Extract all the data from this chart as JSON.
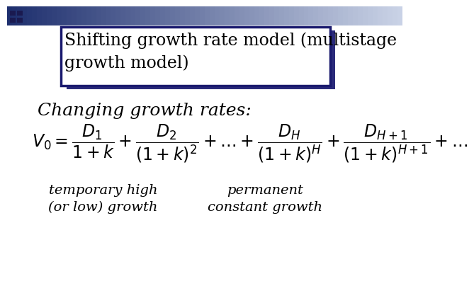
{
  "title_text": "Shifting growth rate model (multistage\ngrowth model)",
  "subtitle_text": "Changing growth rates:",
  "formula": "$V_0 = \\dfrac{D_1}{1+k} + \\dfrac{D_2}{(1+k)^2} + \\ldots + \\dfrac{D_H}{(1+k)^H} + \\dfrac{D_{H+1}}{(1+k)^{H+1}} + \\ldots$",
  "label_left": "temporary high\n(or low) growth",
  "label_right": "permanent\nconstant growth",
  "bg_color": "#ffffff",
  "title_box_color": "#ffffff",
  "title_box_edge": "#1a1a6e",
  "title_font_size": 17,
  "subtitle_font_size": 18,
  "formula_font_size": 17,
  "label_font_size": 14,
  "header_dark": "#1e2f6e",
  "header_light": "#c8d0e8",
  "shadow_color": "#2a2a7a"
}
